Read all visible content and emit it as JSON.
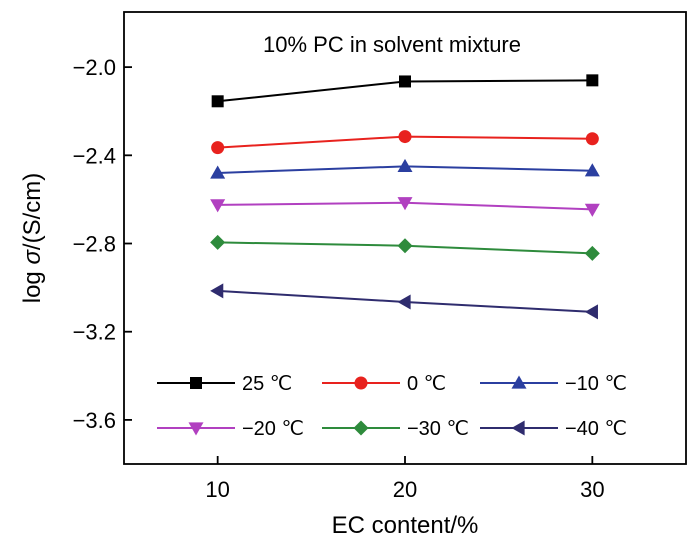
{
  "chart_data": {
    "type": "line",
    "annotation": "10% PC in solvent mixture",
    "xlabel": "EC content/%",
    "ylabel_prefix": "log ",
    "ylabel_symbol": "σ",
    "ylabel_suffix": "/(S/cm)",
    "x": [
      10,
      20,
      30
    ],
    "xlim": [
      5,
      35
    ],
    "ylim": [
      -3.8,
      -1.75
    ],
    "xticks": [
      10,
      20,
      30
    ],
    "xtick_labels": [
      "10",
      "20",
      "30"
    ],
    "yticks": [
      -2.0,
      -2.4,
      -2.8,
      -3.2,
      -3.6
    ],
    "ytick_labels": [
      "−2.0",
      "−2.4",
      "−2.8",
      "−3.2",
      "−3.6"
    ],
    "grid": false,
    "legend_position": "bottom",
    "series": [
      {
        "name": "25 ℃",
        "values": [
          -2.155,
          -2.065,
          -2.06
        ],
        "color": "#000000",
        "marker": "square"
      },
      {
        "name": "0 ℃",
        "values": [
          -2.365,
          -2.315,
          -2.325
        ],
        "color": "#e8221e",
        "marker": "circle"
      },
      {
        "name": "−10 ℃",
        "values": [
          -2.48,
          -2.45,
          -2.47
        ],
        "color": "#2b3fa0",
        "marker": "triangle-up"
      },
      {
        "name": "−20 ℃",
        "values": [
          -2.625,
          -2.615,
          -2.645
        ],
        "color": "#b140c0",
        "marker": "triangle-down"
      },
      {
        "name": "−30 ℃",
        "values": [
          -2.795,
          -2.81,
          -2.845
        ],
        "color": "#2e8b3c",
        "marker": "diamond"
      },
      {
        "name": "−40 ℃",
        "values": [
          -3.015,
          -3.065,
          -3.11
        ],
        "color": "#2f2c6e",
        "marker": "triangle-left"
      }
    ]
  }
}
